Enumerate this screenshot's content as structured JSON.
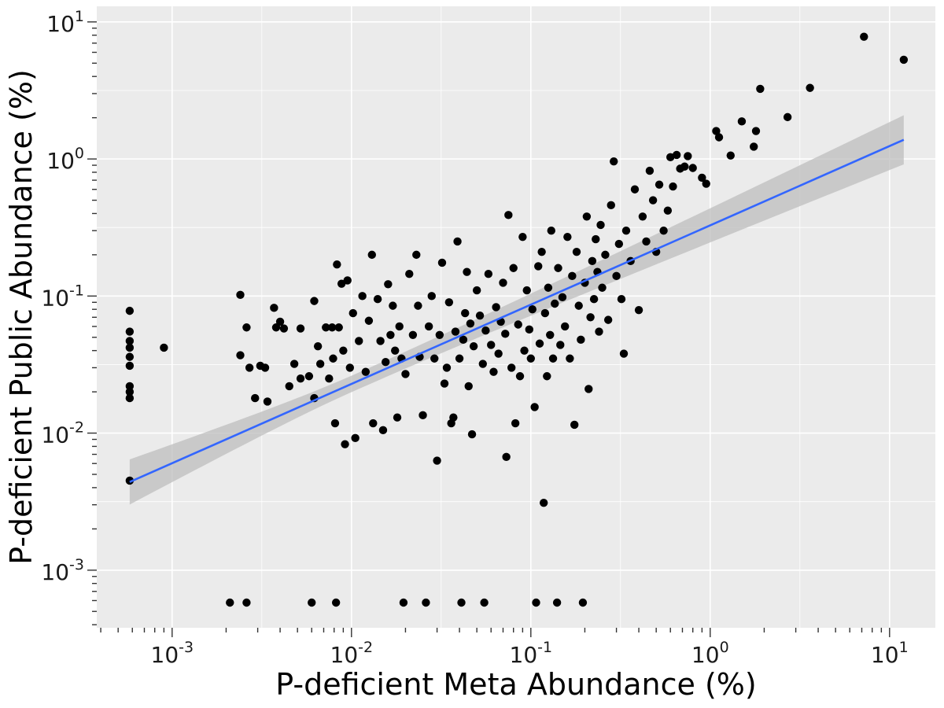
{
  "chart_data": {
    "type": "scatter",
    "title": "",
    "xlabel": "P-deficient Meta Abundance (%)",
    "ylabel": "P-deficient Public Abundance (%)",
    "xscale": "log",
    "yscale": "log",
    "xlim": [
      0.00038,
      18
    ],
    "ylim": [
      0.00038,
      13
    ],
    "x_ticks": [
      {
        "value": 0.001,
        "base": "10",
        "exp": "-3"
      },
      {
        "value": 0.01,
        "base": "10",
        "exp": "-2"
      },
      {
        "value": 0.1,
        "base": "10",
        "exp": "-1"
      },
      {
        "value": 1,
        "base": "10",
        "exp": "0"
      },
      {
        "value": 10,
        "base": "10",
        "exp": "1"
      }
    ],
    "y_ticks": [
      {
        "value": 0.001,
        "base": "10",
        "exp": "-3"
      },
      {
        "value": 0.01,
        "base": "10",
        "exp": "-2"
      },
      {
        "value": 0.1,
        "base": "10",
        "exp": "-1"
      },
      {
        "value": 1,
        "base": "10",
        "exp": "0"
      },
      {
        "value": 10,
        "base": "10",
        "exp": "1"
      }
    ],
    "grid": true,
    "legend": "none",
    "colors": {
      "panel": "#ebebeb",
      "grid": "#ffffff",
      "points": "#000000",
      "fit_line": "#3366ff",
      "ribbon": "#bdbdbd"
    },
    "fit": {
      "x_start": 0.00058,
      "x_end": 12,
      "y_start": 0.0044,
      "y_end": 1.38,
      "ci_lower_start": 0.003,
      "ci_upper_start": 0.0064,
      "ci_lower_end": 0.92,
      "ci_upper_end": 2.1
    },
    "points": [
      [
        0.00058,
        0.078
      ],
      [
        0.00058,
        0.055
      ],
      [
        0.00058,
        0.047
      ],
      [
        0.00058,
        0.042
      ],
      [
        0.00058,
        0.036
      ],
      [
        0.00058,
        0.031
      ],
      [
        0.00058,
        0.022
      ],
      [
        0.00058,
        0.02
      ],
      [
        0.00058,
        0.018
      ],
      [
        0.00058,
        0.0045
      ],
      [
        0.0009,
        0.042
      ],
      [
        0.0021,
        0.00058
      ],
      [
        0.0024,
        0.102
      ],
      [
        0.0024,
        0.037
      ],
      [
        0.0026,
        0.00058
      ],
      [
        0.0026,
        0.059
      ],
      [
        0.0027,
        0.03
      ],
      [
        0.0029,
        0.018
      ],
      [
        0.0031,
        0.031
      ],
      [
        0.0033,
        0.03
      ],
      [
        0.0034,
        0.017
      ],
      [
        0.0037,
        0.082
      ],
      [
        0.0038,
        0.059
      ],
      [
        0.004,
        0.065
      ],
      [
        0.0042,
        0.058
      ],
      [
        0.0045,
        0.022
      ],
      [
        0.0048,
        0.032
      ],
      [
        0.0052,
        0.058
      ],
      [
        0.0052,
        0.025
      ],
      [
        0.0058,
        0.026
      ],
      [
        0.006,
        0.00058
      ],
      [
        0.0062,
        0.018
      ],
      [
        0.0062,
        0.092
      ],
      [
        0.0065,
        0.043
      ],
      [
        0.0067,
        0.032
      ],
      [
        0.0072,
        0.059
      ],
      [
        0.0075,
        0.025
      ],
      [
        0.0078,
        0.059
      ],
      [
        0.0079,
        0.035
      ],
      [
        0.0081,
        0.0118
      ],
      [
        0.0082,
        0.00058
      ],
      [
        0.0083,
        0.17
      ],
      [
        0.0085,
        0.059
      ],
      [
        0.0088,
        0.123
      ],
      [
        0.009,
        0.04
      ],
      [
        0.0092,
        0.0083
      ],
      [
        0.0095,
        0.13
      ],
      [
        0.0098,
        0.03
      ],
      [
        0.0102,
        0.075
      ],
      [
        0.0105,
        0.0092
      ],
      [
        0.011,
        0.047
      ],
      [
        0.0115,
        0.1
      ],
      [
        0.012,
        0.028
      ],
      [
        0.0125,
        0.066
      ],
      [
        0.013,
        0.2
      ],
      [
        0.0132,
        0.0118
      ],
      [
        0.014,
        0.095
      ],
      [
        0.0145,
        0.047
      ],
      [
        0.015,
        0.0105
      ],
      [
        0.0155,
        0.033
      ],
      [
        0.016,
        0.122
      ],
      [
        0.0165,
        0.052
      ],
      [
        0.017,
        0.085
      ],
      [
        0.0175,
        0.04
      ],
      [
        0.018,
        0.013
      ],
      [
        0.0185,
        0.06
      ],
      [
        0.019,
        0.035
      ],
      [
        0.0195,
        0.00058
      ],
      [
        0.02,
        0.027
      ],
      [
        0.021,
        0.145
      ],
      [
        0.022,
        0.052
      ],
      [
        0.023,
        0.2
      ],
      [
        0.0235,
        0.085
      ],
      [
        0.024,
        0.036
      ],
      [
        0.025,
        0.0135
      ],
      [
        0.026,
        0.00058
      ],
      [
        0.027,
        0.06
      ],
      [
        0.028,
        0.1
      ],
      [
        0.029,
        0.035
      ],
      [
        0.03,
        0.0063
      ],
      [
        0.031,
        0.052
      ],
      [
        0.032,
        0.175
      ],
      [
        0.033,
        0.023
      ],
      [
        0.034,
        0.03
      ],
      [
        0.035,
        0.09
      ],
      [
        0.036,
        0.0118
      ],
      [
        0.037,
        0.013
      ],
      [
        0.038,
        0.055
      ],
      [
        0.039,
        0.25
      ],
      [
        0.04,
        0.035
      ],
      [
        0.041,
        0.00058
      ],
      [
        0.042,
        0.048
      ],
      [
        0.043,
        0.075
      ],
      [
        0.044,
        0.15
      ],
      [
        0.045,
        0.022
      ],
      [
        0.046,
        0.063
      ],
      [
        0.047,
        0.0098
      ],
      [
        0.048,
        0.043
      ],
      [
        0.05,
        0.11
      ],
      [
        0.052,
        0.072
      ],
      [
        0.054,
        0.032
      ],
      [
        0.055,
        0.00058
      ],
      [
        0.056,
        0.056
      ],
      [
        0.058,
        0.145
      ],
      [
        0.06,
        0.044
      ],
      [
        0.062,
        0.028
      ],
      [
        0.064,
        0.083
      ],
      [
        0.066,
        0.038
      ],
      [
        0.068,
        0.065
      ],
      [
        0.07,
        0.125
      ],
      [
        0.072,
        0.053
      ],
      [
        0.073,
        0.0067
      ],
      [
        0.075,
        0.39
      ],
      [
        0.078,
        0.03
      ],
      [
        0.08,
        0.16
      ],
      [
        0.082,
        0.0118
      ],
      [
        0.085,
        0.062
      ],
      [
        0.087,
        0.026
      ],
      [
        0.09,
        0.27
      ],
      [
        0.092,
        0.04
      ],
      [
        0.095,
        0.11
      ],
      [
        0.098,
        0.057
      ],
      [
        0.1,
        0.035
      ],
      [
        0.102,
        0.08
      ],
      [
        0.105,
        0.0155
      ],
      [
        0.107,
        0.00058
      ],
      [
        0.11,
        0.165
      ],
      [
        0.112,
        0.045
      ],
      [
        0.115,
        0.21
      ],
      [
        0.118,
        0.0031
      ],
      [
        0.12,
        0.075
      ],
      [
        0.123,
        0.026
      ],
      [
        0.125,
        0.115
      ],
      [
        0.128,
        0.052
      ],
      [
        0.13,
        0.3
      ],
      [
        0.133,
        0.035
      ],
      [
        0.136,
        0.088
      ],
      [
        0.14,
        0.00058
      ],
      [
        0.142,
        0.16
      ],
      [
        0.146,
        0.044
      ],
      [
        0.15,
        0.098
      ],
      [
        0.155,
        0.06
      ],
      [
        0.16,
        0.27
      ],
      [
        0.165,
        0.035
      ],
      [
        0.17,
        0.14
      ],
      [
        0.175,
        0.0115
      ],
      [
        0.18,
        0.21
      ],
      [
        0.185,
        0.085
      ],
      [
        0.19,
        0.048
      ],
      [
        0.195,
        0.00058
      ],
      [
        0.2,
        0.125
      ],
      [
        0.205,
        0.38
      ],
      [
        0.21,
        0.021
      ],
      [
        0.215,
        0.07
      ],
      [
        0.22,
        0.18
      ],
      [
        0.225,
        0.095
      ],
      [
        0.23,
        0.26
      ],
      [
        0.235,
        0.15
      ],
      [
        0.24,
        0.055
      ],
      [
        0.245,
        0.33
      ],
      [
        0.25,
        0.115
      ],
      [
        0.26,
        0.2
      ],
      [
        0.27,
        0.067
      ],
      [
        0.28,
        0.46
      ],
      [
        0.29,
        0.96
      ],
      [
        0.3,
        0.14
      ],
      [
        0.31,
        0.24
      ],
      [
        0.32,
        0.095
      ],
      [
        0.33,
        0.038
      ],
      [
        0.34,
        0.3
      ],
      [
        0.36,
        0.18
      ],
      [
        0.38,
        0.6
      ],
      [
        0.4,
        0.079
      ],
      [
        0.42,
        0.38
      ],
      [
        0.44,
        0.25
      ],
      [
        0.46,
        0.82
      ],
      [
        0.48,
        0.5
      ],
      [
        0.5,
        0.21
      ],
      [
        0.52,
        0.65
      ],
      [
        0.55,
        0.3
      ],
      [
        0.58,
        0.42
      ],
      [
        0.6,
        1.03
      ],
      [
        0.62,
        0.63
      ],
      [
        0.65,
        1.07
      ],
      [
        0.68,
        0.85
      ],
      [
        0.72,
        0.88
      ],
      [
        0.75,
        1.05
      ],
      [
        0.8,
        0.86
      ],
      [
        0.9,
        0.73
      ],
      [
        0.95,
        0.66
      ],
      [
        1.08,
        1.6
      ],
      [
        1.12,
        1.44
      ],
      [
        1.3,
        1.06
      ],
      [
        1.5,
        1.88
      ],
      [
        1.75,
        1.23
      ],
      [
        1.8,
        1.6
      ],
      [
        1.9,
        3.25
      ],
      [
        2.7,
        2.02
      ],
      [
        3.6,
        3.3
      ],
      [
        7.2,
        7.8
      ],
      [
        12,
        5.3
      ]
    ]
  }
}
